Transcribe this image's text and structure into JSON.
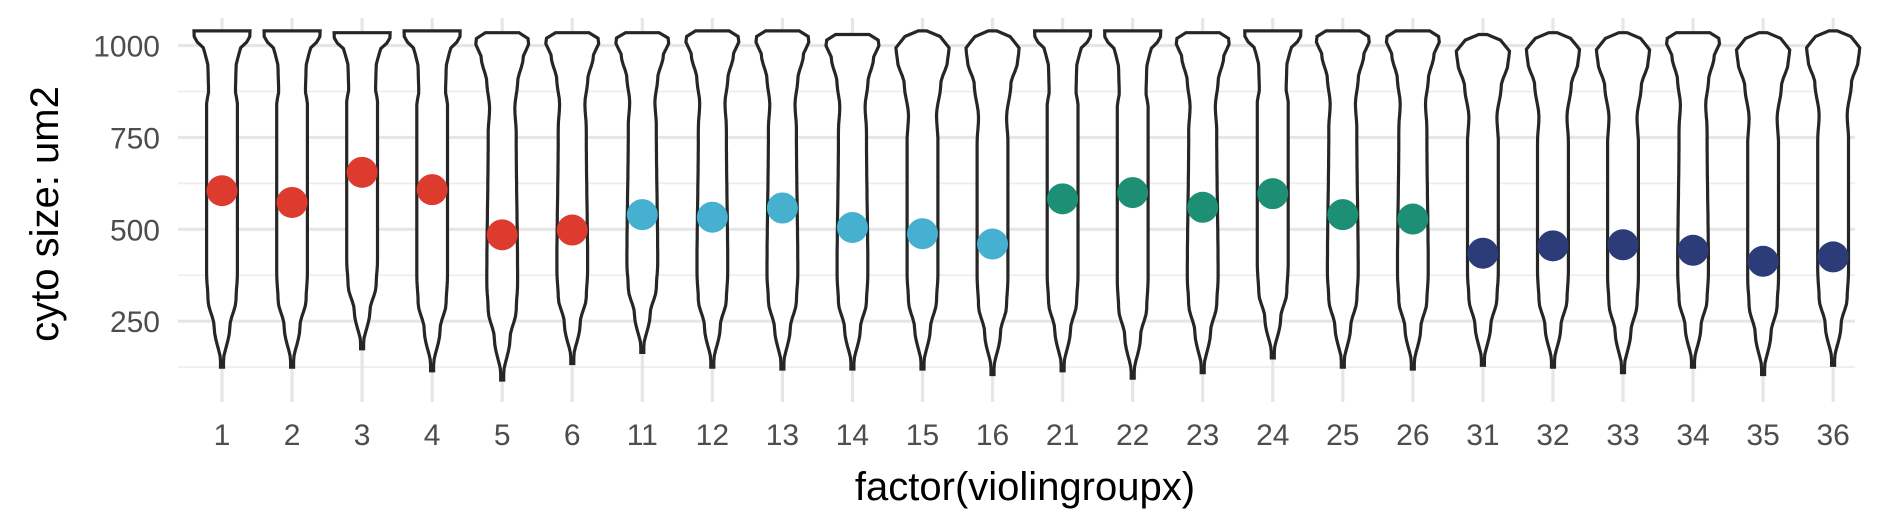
{
  "chart_data": {
    "type": "violin",
    "xlabel": "factor(violingroupx)",
    "ylabel": "cyto size: um2",
    "ylim": [
      90,
      1075
    ],
    "yticks": [
      250,
      500,
      750,
      1000
    ],
    "grid": true,
    "legend": "none",
    "categories": [
      "1",
      "2",
      "3",
      "4",
      "5",
      "6",
      "11",
      "12",
      "13",
      "14",
      "15",
      "16",
      "21",
      "22",
      "23",
      "24",
      "25",
      "26",
      "31",
      "32",
      "33",
      "34",
      "35",
      "36"
    ],
    "group_colors": {
      "1-6": "#dc3b2e",
      "11-16": "#46b0d0",
      "21-26": "#1d8f74",
      "31-36": "#2b3c78"
    },
    "point_colors": [
      "#dc3b2e",
      "#dc3b2e",
      "#dc3b2e",
      "#dc3b2e",
      "#dc3b2e",
      "#dc3b2e",
      "#46b0d0",
      "#46b0d0",
      "#46b0d0",
      "#46b0d0",
      "#46b0d0",
      "#46b0d0",
      "#1d8f74",
      "#1d8f74",
      "#1d8f74",
      "#1d8f74",
      "#1d8f74",
      "#1d8f74",
      "#2b3c78",
      "#2b3c78",
      "#2b3c78",
      "#2b3c78",
      "#2b3c78",
      "#2b3c78"
    ],
    "point_values": [
      605,
      573,
      655,
      608,
      485,
      498,
      540,
      533,
      558,
      505,
      488,
      460,
      583,
      600,
      560,
      597,
      540,
      528,
      435,
      455,
      458,
      443,
      413,
      425
    ],
    "violin_ranges": [
      [
        125,
        1040
      ],
      [
        125,
        1040
      ],
      [
        175,
        1035
      ],
      [
        115,
        1040
      ],
      [
        90,
        1035
      ],
      [
        135,
        1035
      ],
      [
        165,
        1035
      ],
      [
        125,
        1040
      ],
      [
        120,
        1040
      ],
      [
        120,
        1030
      ],
      [
        120,
        1040
      ],
      [
        105,
        1040
      ],
      [
        115,
        1040
      ],
      [
        95,
        1040
      ],
      [
        110,
        1035
      ],
      [
        150,
        1040
      ],
      [
        125,
        1040
      ],
      [
        120,
        1040
      ],
      [
        130,
        1030
      ],
      [
        125,
        1035
      ],
      [
        110,
        1035
      ],
      [
        125,
        1035
      ],
      [
        105,
        1035
      ],
      [
        130,
        1040
      ]
    ],
    "violin_shape_profiles": {
      "A": [
        [
          0.55,
          0.7
        ],
        [
          0.48,
          0.75
        ],
        [
          0.5,
          0.85
        ],
        [
          0.62,
          0.92
        ],
        [
          0.9,
          0.96
        ],
        [
          1.0,
          0.98
        ],
        [
          1.0,
          1.0
        ]
      ],
      "B": [
        [
          0.5,
          0.6
        ],
        [
          0.45,
          0.7
        ],
        [
          0.55,
          0.8
        ],
        [
          0.75,
          0.9
        ],
        [
          0.95,
          0.96
        ],
        [
          0.9,
          0.99
        ],
        [
          0.6,
          1.0
        ]
      ],
      "C": [
        [
          0.55,
          0.55
        ],
        [
          0.5,
          0.65
        ],
        [
          0.65,
          0.78
        ],
        [
          0.9,
          0.88
        ],
        [
          0.95,
          0.93
        ],
        [
          0.7,
          0.97
        ],
        [
          0.15,
          1.0
        ]
      ]
    },
    "violin_shape": [
      "A",
      "A",
      "A",
      "A",
      "B",
      "B",
      "B",
      "B",
      "B",
      "B",
      "C",
      "C",
      "A",
      "A",
      "B",
      "A",
      "B",
      "B",
      "C",
      "C",
      "C",
      "B",
      "C",
      "C"
    ]
  }
}
